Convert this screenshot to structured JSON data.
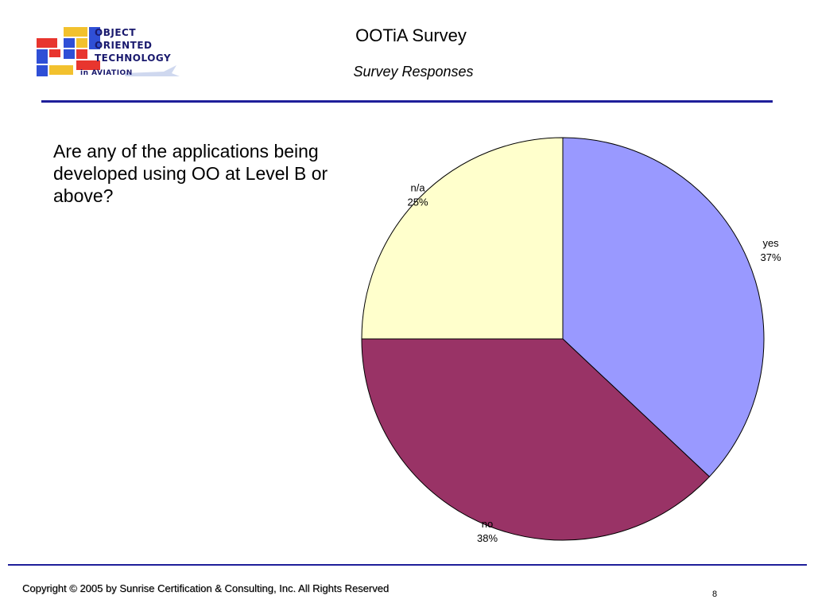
{
  "header": {
    "logo_lines": [
      "OBJECT",
      "ORIENTED",
      "TECHNOLOGY",
      "in AVIATION"
    ],
    "title": "OOTiA Survey",
    "subtitle": "Survey Responses"
  },
  "question": "Are any of the applications being developed using OO at Level B or above?",
  "chart_data": {
    "type": "pie",
    "title": "",
    "slices": [
      {
        "label": "yes",
        "percent_label": "37%",
        "value": 37,
        "color": "#9999ff"
      },
      {
        "label": "no",
        "percent_label": "38%",
        "value": 38,
        "color": "#993366"
      },
      {
        "label": "n/a",
        "percent_label": "25%",
        "value": 25,
        "color": "#ffffcc"
      }
    ],
    "start": "12 o'clock",
    "direction": "clockwise",
    "legend": "none"
  },
  "footer": {
    "copyright": "Copyright © 2005 by Sunrise Certification & Consulting, Inc.  All Rights Reserved",
    "page_number": "8"
  },
  "colors": {
    "rule": "#1f1f9a",
    "logo_text": "#1a1a6e",
    "logo_blocks": [
      "#e8352e",
      "#f2c12e",
      "#2f4fd6"
    ]
  }
}
